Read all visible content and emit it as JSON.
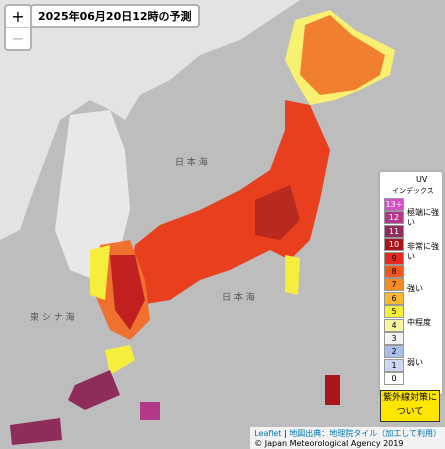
{
  "title": "2025年06月20日12時の予測",
  "zoom": {
    "in": "+",
    "out": "−"
  },
  "map_labels": {
    "sea_of_japan": "日 本 海",
    "east_china_sea": "東 シ ナ 海",
    "pacific": "日 本 海"
  },
  "legend": {
    "title": "UV",
    "subtitle": "インデックス",
    "levels": [
      {
        "label": "13+",
        "color": "#d64fc8"
      },
      {
        "label": "12",
        "color": "#b3388a"
      },
      {
        "label": "11",
        "color": "#8e2c5c"
      },
      {
        "label": "10",
        "color": "#a8161c"
      },
      {
        "label": "9",
        "color": "#e42a1e"
      },
      {
        "label": "8",
        "color": "#f05a1e"
      },
      {
        "label": "7",
        "color": "#f58a22"
      },
      {
        "label": "6",
        "color": "#f8b832"
      },
      {
        "label": "5",
        "color": "#f6ee3c"
      },
      {
        "label": "4",
        "color": "#f8f6a0"
      },
      {
        "label": "3",
        "color": "#f4f4f4"
      },
      {
        "label": "2",
        "color": "#a9bde9"
      },
      {
        "label": "1",
        "color": "#cdd6f2"
      },
      {
        "label": "0",
        "color": "#ffffff"
      }
    ],
    "categories": [
      "極端に強い",
      "非常に強い",
      "強い",
      "中程度",
      "弱い"
    ]
  },
  "button": "紫外線対策について",
  "attribution": {
    "leaflet": "Leaflet",
    "source": "地図出典：地理院タイル（加工して利用）",
    "copyright": "© Japan Meteorological Agency 2019"
  }
}
